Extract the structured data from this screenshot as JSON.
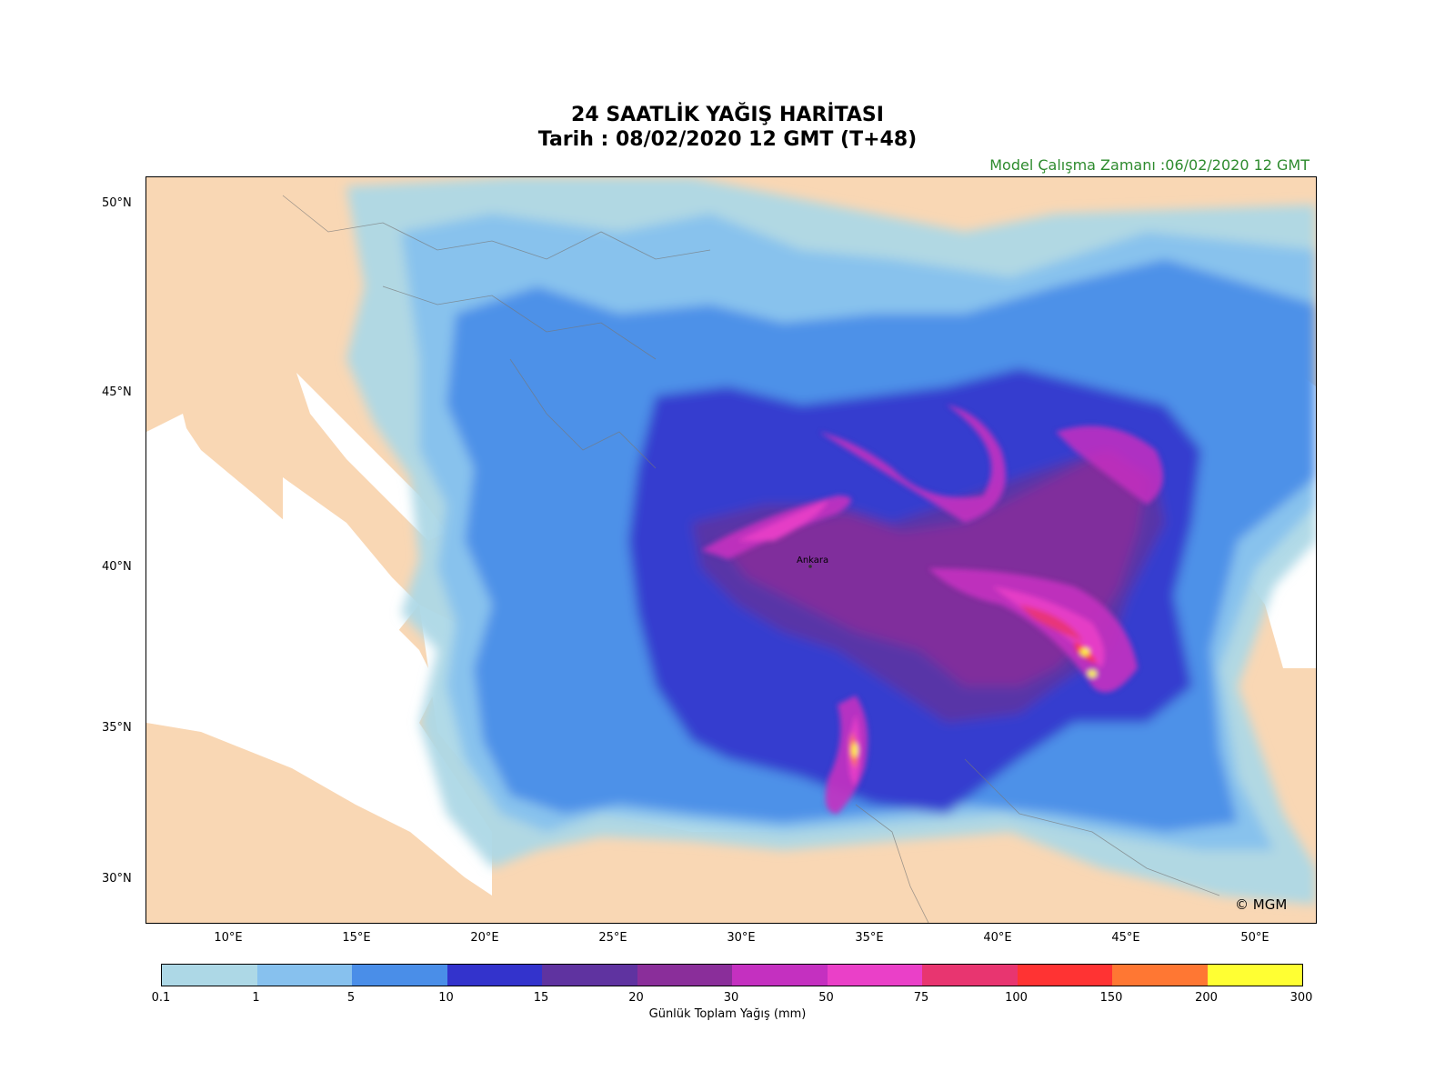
{
  "title": {
    "line1": "24 SAATLİK YAĞIŞ HARİTASI",
    "line2": "Tarih : 08/02/2020  12 GMT (T+48)"
  },
  "model_run": "Model Çalışma Zamanı :06/02/2020  12 GMT",
  "copyright": "© MGM",
  "city_label": "Ankara",
  "lat_ticks": [
    "50°N",
    "45°N",
    "40°N",
    "35°N",
    "30°N"
  ],
  "lon_ticks": [
    "10°E",
    "15°E",
    "20°E",
    "25°E",
    "30°E",
    "35°E",
    "40°E",
    "45°E",
    "50°E"
  ],
  "colorbar": {
    "label": "Günlük Toplam Yağış (mm)",
    "ticks": [
      "0.1",
      "1",
      "5",
      "10",
      "15",
      "20",
      "30",
      "50",
      "75",
      "100",
      "150",
      "200",
      "300"
    ],
    "colors": [
      "#add8e6",
      "#87c1ee",
      "#4a8ee8",
      "#3333cc",
      "#5f33a0",
      "#8a2e9a",
      "#c430c0",
      "#ea40c8",
      "#e83570",
      "#ff3333",
      "#ff7733",
      "#ffff33"
    ]
  },
  "colors": {
    "land": "#f9d7b4",
    "sea": "#ffffff",
    "model_run_text": "#2e8b2e"
  }
}
